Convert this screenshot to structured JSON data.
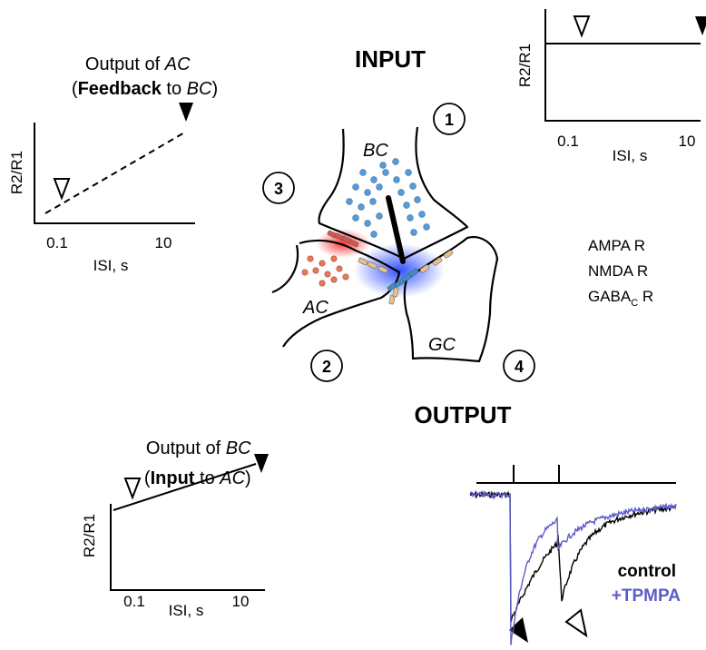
{
  "headings": {
    "input": "INPUT",
    "output": "OUTPUT"
  },
  "panels": [
    {
      "title_lines": [
        [
          {
            "text": "Output of ",
            "style": "normal"
          },
          {
            "text": "AC",
            "style": "italic"
          }
        ],
        [
          {
            "text": "(",
            "style": "normal"
          },
          {
            "text": "Feedback",
            "style": "bold"
          },
          {
            "text": " to ",
            "style": "normal"
          },
          {
            "text": "BC",
            "style": "italic"
          },
          {
            "text": ")",
            "style": "normal"
          }
        ]
      ],
      "y_label": "R2/R1",
      "x_label": "ISI, s",
      "x_ticks": [
        "0.1",
        "10"
      ]
    },
    {
      "y_label": "R2/R1",
      "x_label": "ISI, s",
      "x_ticks": [
        "0.1",
        "10"
      ]
    },
    {
      "title_lines": [
        [
          {
            "text": "Output of ",
            "style": "normal"
          },
          {
            "text": "BC",
            "style": "italic"
          }
        ],
        [
          {
            "text": "(",
            "style": "normal"
          },
          {
            "text": "Input",
            "style": "bold"
          },
          {
            "text": " to ",
            "style": "normal"
          },
          {
            "text": "AC",
            "style": "italic"
          },
          {
            "text": ")",
            "style": "normal"
          }
        ]
      ],
      "y_label": "R2/R1",
      "x_label": "ISI, s",
      "x_ticks": [
        "0.1",
        "10"
      ]
    }
  ],
  "cells": [
    "BC",
    "AC",
    "GC"
  ],
  "steps": [
    "1",
    "2",
    "3",
    "4"
  ],
  "legend": [
    {
      "label": "AMPA R",
      "color": "#3a8fc8"
    },
    {
      "label": "NMDA R",
      "color": "#e8c08a"
    },
    {
      "label": "GABA",
      "sub": "C",
      "suffix": " R",
      "color": "#d9534f"
    }
  ],
  "traces": [
    {
      "name": "control",
      "color": "#000000"
    },
    {
      "name": "+TPMPA",
      "color": "#5c5cc8"
    }
  ]
}
